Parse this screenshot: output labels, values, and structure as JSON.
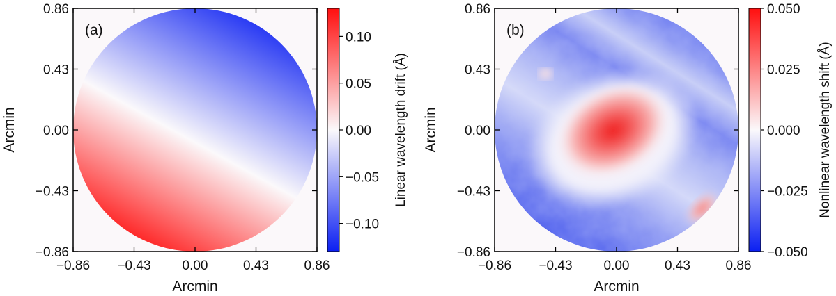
{
  "colors": {
    "neg": "#0b1ff2",
    "mid": "#fbf9fb",
    "pos": "#ff0f0f",
    "frame": "#000000",
    "background": "#fbf8fa"
  },
  "chart_data": [
    {
      "type": "heatmap",
      "panel_label": "(a)",
      "description_kind": "linear gradient inside circular aperture",
      "xlabel": "Arcmin",
      "ylabel": "Arcmin",
      "xlim": [
        -0.86,
        0.86
      ],
      "ylim": [
        -0.86,
        0.86
      ],
      "xticks": [
        -0.86,
        -0.43,
        0.0,
        0.43,
        0.86
      ],
      "xtick_labels": [
        "−0.86",
        "−0.43",
        "0.00",
        "0.43",
        "0.86"
      ],
      "yticks": [
        0.86,
        0.43,
        0.0,
        -0.43,
        -0.86
      ],
      "ytick_labels": [
        "0.86",
        "0.43",
        "0.00",
        "−0.43",
        "−0.86"
      ],
      "aperture_radius": 0.86,
      "gradient_from": [
        -0.5,
        -0.86
      ],
      "gradient_to": [
        0.6,
        0.86
      ],
      "colorbar": {
        "label": "Linear wavelength drift (Å)",
        "range": [
          -0.13,
          0.13
        ],
        "ticks": [
          0.1,
          0.05,
          0.0,
          -0.05,
          -0.1
        ],
        "tick_labels": [
          "0.10",
          "0.05",
          "0.00",
          "−0.05",
          "−0.10"
        ]
      }
    },
    {
      "type": "heatmap",
      "panel_label": "(b)",
      "description_kind": "nonlinear shift map inside circular aperture",
      "xlabel": "Arcmin",
      "ylabel": "Arcmin",
      "xlim": [
        -0.86,
        0.86
      ],
      "ylim": [
        -0.86,
        0.86
      ],
      "xticks": [
        -0.86,
        -0.43,
        0.0,
        0.43,
        0.86
      ],
      "xtick_labels": [
        "−0.86",
        "−0.43",
        "0.00",
        "0.43",
        "0.86"
      ],
      "yticks": [
        0.86,
        0.43,
        0.0,
        -0.43,
        -0.86
      ],
      "ytick_labels": [
        "0.86",
        "0.43",
        "0.00",
        "−0.43",
        "−0.86"
      ],
      "aperture_radius": 0.86,
      "features": [
        {
          "kind": "positive-core",
          "center": [
            -0.02,
            0.02
          ],
          "peak_value": 0.03
        },
        {
          "kind": "positive-edge",
          "center": [
            0.62,
            -0.55
          ],
          "peak_value": 0.015
        }
      ],
      "colorbar": {
        "label": "Nonlinear wavelength shift (Å)",
        "range": [
          -0.05,
          0.05
        ],
        "ticks": [
          0.05,
          0.025,
          0.0,
          -0.025,
          -0.05
        ],
        "tick_labels": [
          "0.050",
          "0.025",
          "0.000",
          "−0.025",
          "−0.050"
        ]
      }
    }
  ]
}
